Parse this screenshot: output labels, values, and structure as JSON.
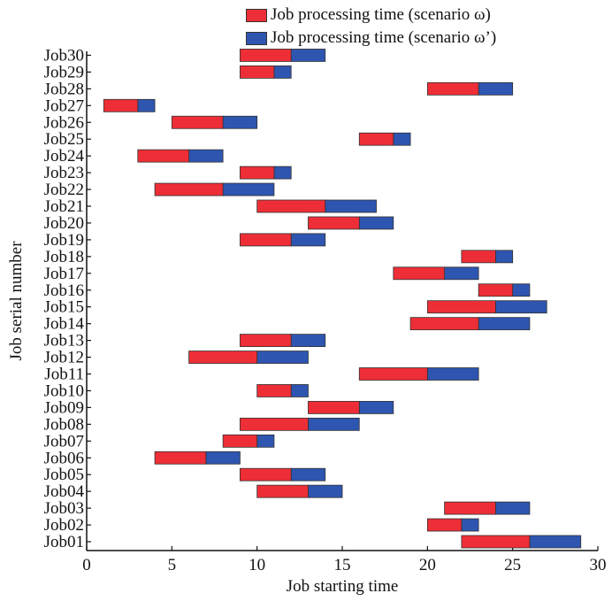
{
  "chart_data": {
    "type": "gantt",
    "xlabel": "Job starting time",
    "ylabel": "Job serial number",
    "xlim": [
      0,
      30
    ],
    "xticks": [
      0,
      5,
      10,
      15,
      20,
      25,
      30
    ],
    "legend_position": "top-right",
    "series": [
      {
        "name": "Job processing time (scenario ω)",
        "color": "#ee2e36"
      },
      {
        "name": "Job processing time (scenario ω’)",
        "color": "#2e55b0"
      }
    ],
    "jobs": [
      {
        "label": "Job01",
        "start": 22,
        "omega_end": 26,
        "omega_prime_end": 29
      },
      {
        "label": "Job02",
        "start": 20,
        "omega_end": 22,
        "omega_prime_end": 23
      },
      {
        "label": "Job03",
        "start": 21,
        "omega_end": 24,
        "omega_prime_end": 26
      },
      {
        "label": "Job04",
        "start": 10,
        "omega_end": 13,
        "omega_prime_end": 15
      },
      {
        "label": "Job05",
        "start": 9,
        "omega_end": 12,
        "omega_prime_end": 14
      },
      {
        "label": "Job06",
        "start": 4,
        "omega_end": 7,
        "omega_prime_end": 9
      },
      {
        "label": "Job07",
        "start": 8,
        "omega_end": 10,
        "omega_prime_end": 11
      },
      {
        "label": "Job08",
        "start": 9,
        "omega_end": 13,
        "omega_prime_end": 16
      },
      {
        "label": "Job09",
        "start": 13,
        "omega_end": 16,
        "omega_prime_end": 18
      },
      {
        "label": "Job10",
        "start": 10,
        "omega_end": 12,
        "omega_prime_end": 13
      },
      {
        "label": "Job11",
        "start": 16,
        "omega_end": 20,
        "omega_prime_end": 23
      },
      {
        "label": "Job12",
        "start": 6,
        "omega_end": 10,
        "omega_prime_end": 13
      },
      {
        "label": "Job13",
        "start": 9,
        "omega_end": 12,
        "omega_prime_end": 14
      },
      {
        "label": "Job14",
        "start": 19,
        "omega_end": 23,
        "omega_prime_end": 26
      },
      {
        "label": "Job15",
        "start": 20,
        "omega_end": 24,
        "omega_prime_end": 27
      },
      {
        "label": "Job16",
        "start": 23,
        "omega_end": 25,
        "omega_prime_end": 26
      },
      {
        "label": "Job17",
        "start": 18,
        "omega_end": 21,
        "omega_prime_end": 23
      },
      {
        "label": "Job18",
        "start": 22,
        "omega_end": 24,
        "omega_prime_end": 25
      },
      {
        "label": "Job19",
        "start": 9,
        "omega_end": 12,
        "omega_prime_end": 14
      },
      {
        "label": "Job20",
        "start": 13,
        "omega_end": 16,
        "omega_prime_end": 18
      },
      {
        "label": "Job21",
        "start": 10,
        "omega_end": 14,
        "omega_prime_end": 17
      },
      {
        "label": "Job22",
        "start": 4,
        "omega_end": 8,
        "omega_prime_end": 11
      },
      {
        "label": "Job23",
        "start": 9,
        "omega_end": 11,
        "omega_prime_end": 12
      },
      {
        "label": "Job24",
        "start": 3,
        "omega_end": 6,
        "omega_prime_end": 8
      },
      {
        "label": "Job25",
        "start": 16,
        "omega_end": 18,
        "omega_prime_end": 19
      },
      {
        "label": "Job26",
        "start": 5,
        "omega_end": 8,
        "omega_prime_end": 10
      },
      {
        "label": "Job27",
        "start": 1,
        "omega_end": 3,
        "omega_prime_end": 4
      },
      {
        "label": "Job28",
        "start": 20,
        "omega_end": 23,
        "omega_prime_end": 25
      },
      {
        "label": "Job29",
        "start": 9,
        "omega_end": 11,
        "omega_prime_end": 12
      },
      {
        "label": "Job30",
        "start": 9,
        "omega_end": 12,
        "omega_prime_end": 14
      }
    ]
  }
}
